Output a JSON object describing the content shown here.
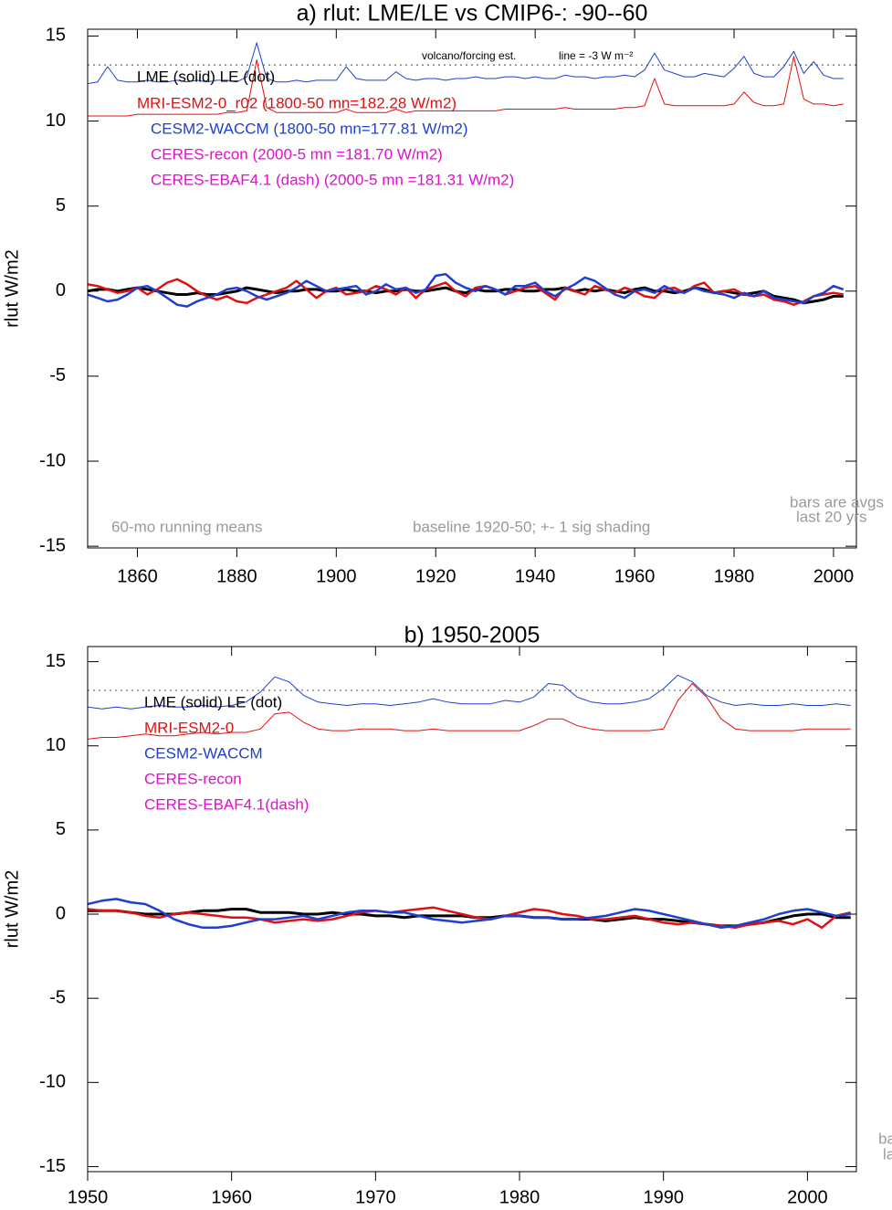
{
  "chart_data": [
    {
      "type": "line",
      "title": "a) rlut: LME/LE vs CMIP6-: -90--60",
      "y_label": "rlut W/m2",
      "x": [
        1850,
        1852,
        1854,
        1856,
        1858,
        1860,
        1862,
        1864,
        1866,
        1868,
        1870,
        1872,
        1874,
        1876,
        1878,
        1880,
        1882,
        1884,
        1886,
        1888,
        1890,
        1892,
        1894,
        1896,
        1898,
        1900,
        1902,
        1904,
        1906,
        1908,
        1910,
        1912,
        1914,
        1916,
        1918,
        1920,
        1922,
        1924,
        1926,
        1928,
        1930,
        1932,
        1934,
        1936,
        1938,
        1940,
        1942,
        1944,
        1946,
        1948,
        1950,
        1952,
        1954,
        1956,
        1958,
        1960,
        1962,
        1964,
        1966,
        1968,
        1970,
        1972,
        1974,
        1976,
        1978,
        1980,
        1982,
        1984,
        1986,
        1988,
        1990,
        1992,
        1994,
        1996,
        1998,
        2000,
        2002
      ],
      "xlim": [
        1850,
        2004.6
      ],
      "xticks": [
        1860,
        1880,
        1900,
        1920,
        1940,
        1960,
        1980,
        2000
      ],
      "ylim": [
        -15.1,
        15.4
      ],
      "yticks": [
        -15,
        -10,
        -5,
        0,
        5,
        10,
        15
      ],
      "reference_line": 13.3,
      "series": [
        {
          "color": "#1f3fd0",
          "line_width": 1,
          "values": [
            12.2,
            12.3,
            13.2,
            12.4,
            12.3,
            12.3,
            12.4,
            12.3,
            12.3,
            12.4,
            12.3,
            12.4,
            12.3,
            12.4,
            12.4,
            12.3,
            12.6,
            14.6,
            12.5,
            12.3,
            12.3,
            12.4,
            12.3,
            12.4,
            12.4,
            12.4,
            13.2,
            12.5,
            12.4,
            12.4,
            12.4,
            12.9,
            12.5,
            12.4,
            12.5,
            12.5,
            12.4,
            12.5,
            12.5,
            12.6,
            12.5,
            12.5,
            12.6,
            12.6,
            12.5,
            12.6,
            12.5,
            12.5,
            12.7,
            12.6,
            12.6,
            12.5,
            12.6,
            12.6,
            12.7,
            12.6,
            13.0,
            14.0,
            13.0,
            12.8,
            12.6,
            12.6,
            12.8,
            12.7,
            12.6,
            13.1,
            13.8,
            12.8,
            12.6,
            12.6,
            13.2,
            14.1,
            12.8,
            13.5,
            12.7,
            12.5,
            12.5
          ]
        },
        {
          "color": "#e01010",
          "line_width": 1,
          "values": [
            10.3,
            10.3,
            10.3,
            10.3,
            10.3,
            10.4,
            10.4,
            10.4,
            10.4,
            10.4,
            10.4,
            10.4,
            10.4,
            10.4,
            10.5,
            10.5,
            10.6,
            13.6,
            10.8,
            10.5,
            10.5,
            10.5,
            10.5,
            10.5,
            10.5,
            10.5,
            10.7,
            10.5,
            10.5,
            10.5,
            10.5,
            10.7,
            10.5,
            10.6,
            10.6,
            10.6,
            10.6,
            10.6,
            10.6,
            10.6,
            10.6,
            10.6,
            10.7,
            10.7,
            10.7,
            10.7,
            10.7,
            10.7,
            10.8,
            10.7,
            10.7,
            10.7,
            10.7,
            10.7,
            10.8,
            10.8,
            10.9,
            12.5,
            11.0,
            10.9,
            10.9,
            10.9,
            10.9,
            10.9,
            10.9,
            11.0,
            11.7,
            11.1,
            10.9,
            10.9,
            11.0,
            13.8,
            11.3,
            11.0,
            11.0,
            10.9,
            11.0
          ]
        },
        {
          "name": "LME (solid)   LE (dot)",
          "color": "#000000",
          "line_width": 3,
          "values": [
            0.0,
            0.1,
            0.1,
            0.0,
            0.1,
            0.2,
            0.1,
            0.0,
            -0.1,
            -0.2,
            -0.2,
            -0.1,
            -0.2,
            -0.2,
            -0.1,
            0.0,
            0.2,
            0.1,
            0.0,
            -0.1,
            0.0,
            0.0,
            0.1,
            0.1,
            0.0,
            0.0,
            0.1,
            0.0,
            0.0,
            -0.1,
            0.0,
            0.0,
            0.1,
            0.0,
            0.0,
            0.1,
            0.2,
            0.0,
            -0.1,
            0.1,
            0.0,
            0.0,
            0.1,
            0.1,
            0.0,
            0.0,
            0.1,
            0.1,
            0.2,
            0.0,
            0.1,
            0.0,
            0.1,
            0.0,
            -0.1,
            0.1,
            0.2,
            0.0,
            0.0,
            -0.1,
            0.0,
            0.2,
            0.1,
            -0.1,
            0.0,
            -0.1,
            -0.2,
            -0.1,
            0.0,
            -0.3,
            -0.4,
            -0.5,
            -0.7,
            -0.6,
            -0.5,
            -0.3,
            -0.3
          ]
        },
        {
          "name": "MRI-ESM2-0_r02 (1800-50 mn=182.28 W/m2)",
          "color": "#e01010",
          "line_width": 2.5,
          "values": [
            0.4,
            0.3,
            0.1,
            -0.1,
            0.0,
            0.2,
            -0.2,
            0.1,
            0.5,
            0.7,
            0.4,
            0.0,
            -0.3,
            -0.5,
            -0.3,
            -0.6,
            -0.7,
            -0.4,
            -0.2,
            0.0,
            0.2,
            0.6,
            0.1,
            -0.4,
            0.0,
            0.2,
            -0.2,
            -0.1,
            0.0,
            0.3,
            0.1,
            -0.2,
            0.2,
            -0.4,
            0.1,
            0.3,
            0.5,
            0.0,
            -0.3,
            0.2,
            0.3,
            0.1,
            -0.2,
            0.0,
            0.2,
            0.3,
            -0.1,
            -0.5,
            0.2,
            0.0,
            -0.2,
            0.3,
            0.1,
            -0.1,
            0.2,
            0.0,
            -0.3,
            -0.4,
            0.1,
            0.2,
            -0.1,
            0.3,
            0.5,
            -0.1,
            0.0,
            0.1,
            -0.2,
            -0.3,
            -0.2,
            -0.5,
            -0.6,
            -0.8,
            -0.6,
            -0.3,
            -0.2,
            -0.1,
            -0.2
          ]
        },
        {
          "name": "CESM2-WACCM (1800-50 mn=177.81 W/m2)",
          "color": "#1f3fd0",
          "line_width": 2.5,
          "values": [
            -0.2,
            -0.4,
            -0.6,
            -0.5,
            -0.2,
            0.2,
            0.3,
            0.0,
            -0.4,
            -0.8,
            -0.9,
            -0.6,
            -0.4,
            -0.2,
            0.1,
            0.2,
            0.0,
            -0.3,
            -0.5,
            -0.3,
            -0.1,
            0.2,
            0.6,
            0.3,
            0.0,
            0.1,
            0.2,
            0.3,
            -0.2,
            0.0,
            0.4,
            0.1,
            0.2,
            -0.1,
            0.1,
            0.9,
            1.0,
            0.5,
            0.2,
            0.0,
            0.3,
            0.1,
            -0.2,
            0.3,
            0.3,
            0.5,
            0.0,
            -0.3,
            0.1,
            0.4,
            0.8,
            0.6,
            0.2,
            -0.2,
            -0.4,
            0.0,
            0.1,
            -0.1,
            0.3,
            0.0,
            -0.1,
            0.2,
            0.0,
            -0.1,
            -0.2,
            -0.4,
            -0.1,
            -0.3,
            0.0,
            -0.4,
            -0.5,
            -0.6,
            -0.7,
            -0.3,
            -0.1,
            0.3,
            0.1
          ]
        }
      ],
      "legend_extra": [
        {
          "name": "CERES-recon (2000-5 mn =181.70 W/m2)",
          "color": "#e010d0"
        },
        {
          "name": "CERES-EBAF4.1 (dash) (2000-5 mn =181.31 W/m2)",
          "color": "#e010d0"
        }
      ],
      "annotations": [
        "volcano/forcing est.",
        "line = -3 W m⁻²",
        "60-mo running means",
        "baseline 1920-50; +- 1 sig shading",
        "bars are avgs",
        "last 20 yrs"
      ]
    },
    {
      "type": "line",
      "title": "b) 1950-2005",
      "y_label": "rlut W/m2",
      "x": [
        1950,
        1951,
        1952,
        1953,
        1954,
        1955,
        1956,
        1957,
        1958,
        1959,
        1960,
        1961,
        1962,
        1963,
        1964,
        1965,
        1966,
        1967,
        1968,
        1969,
        1970,
        1971,
        1972,
        1973,
        1974,
        1975,
        1976,
        1977,
        1978,
        1979,
        1980,
        1981,
        1982,
        1983,
        1984,
        1985,
        1986,
        1987,
        1988,
        1989,
        1990,
        1991,
        1992,
        1993,
        1994,
        1995,
        1996,
        1997,
        1998,
        1999,
        2000,
        2001,
        2002,
        2003
      ],
      "xlim": [
        1950,
        2003.4
      ],
      "xticks": [
        1950,
        1960,
        1970,
        1980,
        1990,
        2000
      ],
      "ylim": [
        -15.3,
        15.9
      ],
      "yticks": [
        -15,
        -10,
        -5,
        0,
        5,
        10,
        15
      ],
      "reference_line": 13.3,
      "series": [
        {
          "color": "#1f3fd0",
          "line_width": 1,
          "values": [
            12.3,
            12.2,
            12.3,
            12.2,
            12.3,
            12.4,
            12.3,
            12.3,
            12.4,
            12.3,
            12.4,
            12.6,
            13.2,
            14.1,
            13.8,
            13.0,
            12.6,
            12.5,
            12.4,
            12.5,
            12.5,
            12.4,
            12.5,
            12.6,
            12.8,
            12.6,
            12.5,
            12.5,
            12.5,
            12.7,
            12.6,
            12.9,
            13.7,
            13.6,
            12.9,
            12.6,
            12.5,
            12.5,
            12.6,
            12.8,
            13.4,
            14.2,
            13.8,
            13.0,
            12.6,
            12.4,
            12.5,
            12.4,
            12.4,
            12.5,
            12.4,
            12.4,
            12.5,
            12.4
          ]
        },
        {
          "color": "#e01010",
          "line_width": 1,
          "values": [
            10.4,
            10.5,
            10.5,
            10.6,
            10.7,
            10.6,
            10.6,
            10.7,
            10.8,
            10.7,
            10.8,
            10.8,
            11.0,
            11.9,
            12.0,
            11.4,
            11.0,
            10.9,
            10.9,
            11.0,
            11.0,
            11.0,
            10.9,
            10.9,
            11.0,
            10.9,
            10.9,
            10.9,
            10.9,
            10.9,
            10.9,
            11.2,
            11.6,
            11.6,
            11.2,
            11.0,
            10.9,
            10.9,
            10.9,
            10.9,
            11.0,
            12.7,
            13.7,
            12.9,
            11.6,
            11.0,
            10.9,
            10.9,
            10.9,
            10.9,
            11.0,
            11.0,
            11.0,
            11.0
          ]
        },
        {
          "name": "LME (solid)       LE (dot)",
          "color": "#000000",
          "line_width": 3,
          "values": [
            0.2,
            0.2,
            0.2,
            0.1,
            0.0,
            0.0,
            0.0,
            0.1,
            0.2,
            0.2,
            0.3,
            0.3,
            0.1,
            0.1,
            0.1,
            0.0,
            0.0,
            0.1,
            0.0,
            0.0,
            -0.1,
            -0.1,
            -0.2,
            -0.1,
            -0.1,
            -0.1,
            -0.1,
            -0.2,
            -0.2,
            -0.1,
            -0.1,
            -0.2,
            -0.2,
            -0.3,
            -0.3,
            -0.3,
            -0.4,
            -0.3,
            -0.2,
            -0.3,
            -0.3,
            -0.4,
            -0.5,
            -0.6,
            -0.7,
            -0.7,
            -0.6,
            -0.5,
            -0.3,
            -0.1,
            0.0,
            0.0,
            -0.2,
            -0.2
          ]
        },
        {
          "name": "MRI-ESM2-0",
          "color": "#e01010",
          "line_width": 2.5,
          "values": [
            0.3,
            0.2,
            0.2,
            0.1,
            -0.1,
            -0.2,
            0.0,
            0.1,
            0.0,
            -0.1,
            -0.2,
            -0.2,
            -0.3,
            -0.5,
            -0.4,
            -0.3,
            -0.4,
            -0.3,
            -0.1,
            0.1,
            0.2,
            0.1,
            0.2,
            0.3,
            0.4,
            0.2,
            0.0,
            -0.2,
            -0.3,
            -0.1,
            0.1,
            0.3,
            0.2,
            0.0,
            -0.1,
            -0.3,
            -0.3,
            -0.2,
            -0.1,
            -0.3,
            -0.5,
            -0.6,
            -0.5,
            -0.6,
            -0.7,
            -0.8,
            -0.6,
            -0.5,
            -0.4,
            -0.6,
            -0.3,
            -0.8,
            -0.1,
            0.1
          ]
        },
        {
          "name": "CESM2-WACCM",
          "color": "#1f3fd0",
          "line_width": 2.5,
          "values": [
            0.6,
            0.8,
            0.9,
            0.7,
            0.6,
            0.2,
            -0.3,
            -0.6,
            -0.8,
            -0.8,
            -0.7,
            -0.5,
            -0.3,
            -0.3,
            -0.2,
            -0.1,
            -0.3,
            -0.1,
            0.1,
            0.2,
            0.2,
            0.1,
            0.1,
            -0.1,
            -0.3,
            -0.4,
            -0.5,
            -0.4,
            -0.3,
            -0.1,
            -0.1,
            -0.2,
            -0.2,
            -0.3,
            -0.3,
            -0.2,
            -0.1,
            0.1,
            0.3,
            0.2,
            0.0,
            -0.2,
            -0.4,
            -0.6,
            -0.8,
            -0.7,
            -0.5,
            -0.3,
            0.0,
            0.2,
            0.3,
            0.1,
            -0.1,
            0.0
          ]
        }
      ],
      "legend_extra": [
        {
          "name": "CERES-recon",
          "color": "#e010d0"
        },
        {
          "name": "CERES-EBAF4.1(dash)",
          "color": "#e010d0"
        }
      ],
      "annotations": [
        "ba",
        "la"
      ]
    }
  ]
}
